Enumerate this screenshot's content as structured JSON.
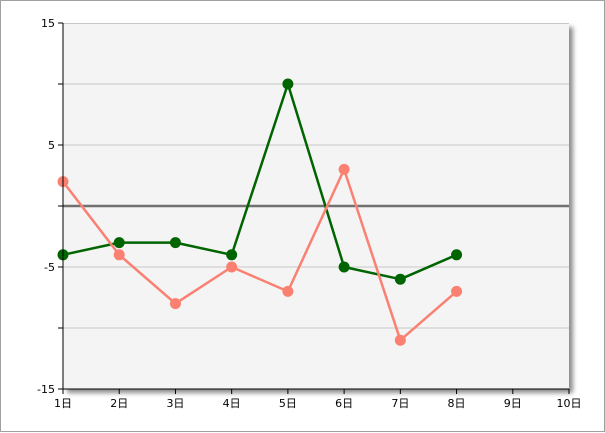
{
  "chart_data": {
    "type": "line",
    "title": "",
    "xlabel": "",
    "ylabel": "",
    "x": [
      1,
      2,
      3,
      4,
      5,
      6,
      7,
      8
    ],
    "xlim": [
      1,
      10
    ],
    "ylim": [
      -15,
      15
    ],
    "x_ticks": [
      1,
      2,
      3,
      4,
      5,
      6,
      7,
      8,
      9,
      10
    ],
    "x_tick_labels": [
      "1日",
      "2日",
      "3日",
      "4日",
      "5日",
      "6日",
      "7日",
      "8日",
      "9日",
      "10日"
    ],
    "y_ticks": [
      15,
      10,
      5,
      0,
      -5,
      -10,
      -15
    ],
    "y_tick_labels": [
      "15",
      "",
      "5",
      "",
      "-5",
      "",
      "-15"
    ],
    "grid": true,
    "zero_line": true,
    "legend": "none",
    "series": [
      {
        "color": "#006400",
        "values": [
          -4,
          -3,
          -3,
          -4,
          10,
          -5,
          -6,
          -4
        ]
      },
      {
        "color": "#FA8072",
        "values": [
          2,
          -4,
          -8,
          -5,
          -7,
          3,
          -11,
          -7
        ]
      }
    ],
    "colors": {
      "plot_background": "#F4F4F4",
      "grid": "#C8C8C8",
      "zero_line": "#707070",
      "axis": "#000000"
    }
  }
}
